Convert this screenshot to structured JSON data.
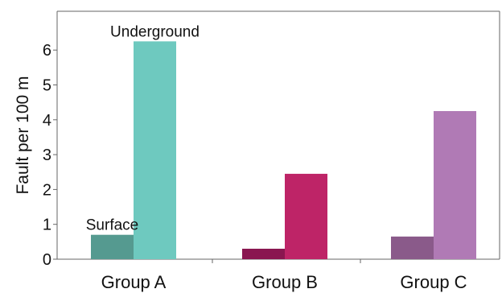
{
  "chart_data": {
    "type": "bar",
    "categories": [
      "Group A",
      "Group B",
      "Group C"
    ],
    "series": [
      {
        "name": "Surface",
        "values": [
          0.7,
          0.3,
          0.65
        ],
        "colors": [
          "#559a90",
          "#8a1650",
          "#8a5a8a"
        ]
      },
      {
        "name": "Underground",
        "values": [
          6.25,
          2.45,
          4.25
        ],
        "colors": [
          "#6ec9bf",
          "#be2467",
          "#b07ab5"
        ]
      }
    ],
    "title": "",
    "xlabel": "",
    "ylabel": "Fault per 100 m",
    "ylim": [
      0,
      7
    ],
    "yticks": [
      0,
      1,
      2,
      3,
      4,
      5,
      6
    ],
    "grid": false,
    "annotations": [
      {
        "text": "Surface",
        "category_index": 0,
        "series_index": 0
      },
      {
        "text": "Underground",
        "category_index": 0,
        "series_index": 1
      }
    ]
  }
}
